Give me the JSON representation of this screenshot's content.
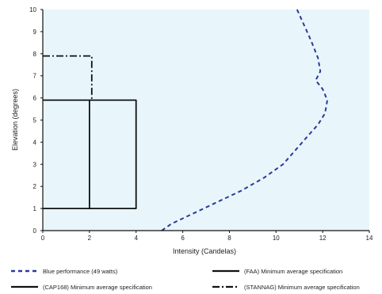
{
  "chart_data": {
    "type": "line",
    "xlabel": "Intensity  (Candelas)",
    "ylabel": "Elevation (degrees)",
    "xlim": [
      0,
      14
    ],
    "ylim": [
      0,
      10
    ],
    "x_ticks": [
      "0",
      "2",
      "4",
      "6",
      "8",
      "10",
      "12",
      "14"
    ],
    "y_ticks": [
      "0",
      "1",
      "2",
      "3",
      "4",
      "5",
      "6",
      "7",
      "8",
      "9",
      "10"
    ],
    "background_color": "#e8f6fb",
    "legend_placement": "bottom",
    "series": [
      {
        "name": "Blue performance (49 watts)",
        "style": "dashed",
        "color": "#2b3a9a",
        "points": [
          [
            5.1,
            0
          ],
          [
            5.5,
            0.3
          ],
          [
            6.5,
            0.8
          ],
          [
            7.5,
            1.3
          ],
          [
            8.5,
            1.8
          ],
          [
            9.5,
            2.4
          ],
          [
            10.3,
            3.0
          ],
          [
            10.8,
            3.6
          ],
          [
            11.3,
            4.2
          ],
          [
            11.8,
            4.8
          ],
          [
            12.1,
            5.3
          ],
          [
            12.2,
            5.9
          ],
          [
            12.0,
            6.4
          ],
          [
            11.7,
            6.8
          ],
          [
            11.9,
            7.2
          ],
          [
            11.8,
            7.8
          ],
          [
            11.5,
            8.6
          ],
          [
            11.2,
            9.3
          ],
          [
            10.9,
            10.0
          ]
        ]
      },
      {
        "name": "(CAP168) Minimum average specification",
        "style": "solid",
        "color": "#111111",
        "points": [
          [
            0,
            1
          ],
          [
            4,
            1
          ],
          [
            4,
            5.9
          ],
          [
            0,
            5.9
          ]
        ]
      },
      {
        "name": "(FAA) Minimum average specification",
        "style": "solid",
        "color": "#111111",
        "points": [
          [
            2,
            1
          ],
          [
            2,
            5.9
          ]
        ]
      },
      {
        "name": "(STANNAG) Minimum average specification",
        "style": "dashdot",
        "color": "#111111",
        "points": [
          [
            0,
            7.9
          ],
          [
            2.1,
            7.9
          ],
          [
            2.1,
            5.9
          ]
        ]
      }
    ]
  }
}
